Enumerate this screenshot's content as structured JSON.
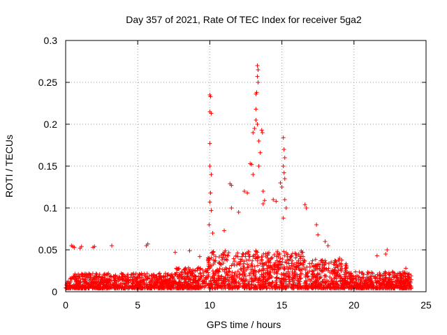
{
  "chart_data": {
    "type": "scatter",
    "title": "Day 357 of 2021, Rate Of TEC Index for receiver 5ga2",
    "xlabel": "GPS time / hours",
    "ylabel": "ROTI / TECUs",
    "xlim": [
      0,
      25
    ],
    "ylim": [
      0,
      0.3
    ],
    "xticks": [
      0,
      5,
      10,
      15,
      20,
      25
    ],
    "xtick_labels": [
      "0",
      "5",
      "10",
      "15",
      "20",
      "25"
    ],
    "yticks": [
      0,
      0.05,
      0.1,
      0.15,
      0.2,
      0.25,
      0.3
    ],
    "ytick_labels": [
      "0",
      "0.05",
      "0.1",
      "0.15",
      "0.2",
      "0.25",
      "0.3"
    ],
    "grid": true,
    "marker": "+",
    "series": [
      {
        "name": "ROTI",
        "color": "#ff0000",
        "points": [
          [
            0.4,
            0.055
          ],
          [
            0.5,
            0.054
          ],
          [
            0.6,
            0.053
          ],
          [
            1.0,
            0.052
          ],
          [
            1.1,
            0.054
          ],
          [
            1.9,
            0.053
          ],
          [
            2.0,
            0.054
          ],
          [
            3.2,
            0.055
          ],
          [
            5.7,
            0.057
          ],
          [
            5.6,
            0.055
          ],
          [
            7.6,
            0.047
          ],
          [
            8.6,
            0.049
          ],
          [
            9.3,
            0.042
          ],
          [
            10.0,
            0.235
          ],
          [
            10.05,
            0.233
          ],
          [
            10.0,
            0.215
          ],
          [
            10.1,
            0.213
          ],
          [
            10.0,
            0.177
          ],
          [
            10.0,
            0.15
          ],
          [
            10.1,
            0.14
          ],
          [
            10.05,
            0.118
          ],
          [
            10.0,
            0.107
          ],
          [
            10.1,
            0.097
          ],
          [
            9.95,
            0.08
          ],
          [
            10.2,
            0.07
          ],
          [
            11.0,
            0.073
          ],
          [
            11.4,
            0.129
          ],
          [
            11.5,
            0.127
          ],
          [
            11.5,
            0.1
          ],
          [
            12.0,
            0.095
          ],
          [
            12.4,
            0.12
          ],
          [
            12.6,
            0.118
          ],
          [
            12.8,
            0.153
          ],
          [
            12.9,
            0.152
          ],
          [
            13.0,
            0.14
          ],
          [
            13.0,
            0.19
          ],
          [
            13.1,
            0.195
          ],
          [
            13.2,
            0.218
          ],
          [
            13.2,
            0.236
          ],
          [
            13.25,
            0.238
          ],
          [
            13.3,
            0.27
          ],
          [
            13.35,
            0.265
          ],
          [
            13.3,
            0.257
          ],
          [
            13.35,
            0.25
          ],
          [
            13.2,
            0.205
          ],
          [
            13.3,
            0.2
          ],
          [
            13.4,
            0.18
          ],
          [
            13.5,
            0.166
          ],
          [
            13.4,
            0.15
          ],
          [
            13.6,
            0.193
          ],
          [
            13.65,
            0.19
          ],
          [
            13.7,
            0.12
          ],
          [
            13.8,
            0.109
          ],
          [
            13.7,
            0.105
          ],
          [
            14.4,
            0.11
          ],
          [
            14.6,
            0.108
          ],
          [
            14.9,
            0.13
          ],
          [
            15.0,
            0.125
          ],
          [
            15.1,
            0.184
          ],
          [
            15.15,
            0.17
          ],
          [
            15.2,
            0.16
          ],
          [
            15.1,
            0.15
          ],
          [
            15.15,
            0.142
          ],
          [
            15.2,
            0.135
          ],
          [
            15.2,
            0.11
          ],
          [
            15.3,
            0.1
          ],
          [
            15.1,
            0.088
          ],
          [
            16.6,
            0.104
          ],
          [
            16.7,
            0.1
          ],
          [
            17.4,
            0.08
          ],
          [
            17.5,
            0.068
          ],
          [
            18.0,
            0.06
          ],
          [
            18.2,
            0.055
          ],
          [
            19.0,
            0.04
          ],
          [
            22.3,
            0.05
          ],
          [
            22.2,
            0.045
          ],
          [
            21.6,
            0.043
          ],
          [
            23.6,
            0.028
          ]
        ]
      }
    ]
  }
}
